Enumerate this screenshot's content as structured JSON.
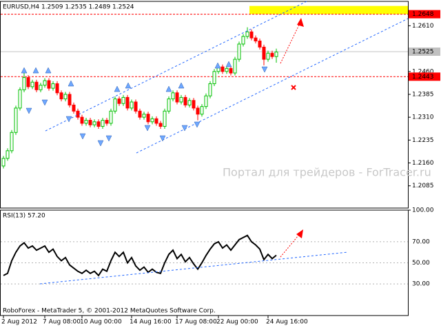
{
  "chart_data": [
    {
      "type": "candlestick",
      "title": "EURUSD,H4  1.2509 1.2535 1.2489 1.2524",
      "watermark": "Портал для трейдеров - ForTracer.ru",
      "up_color": "#00c000",
      "down_color": "#ff0000",
      "open": [
        1.215,
        1.2175,
        1.22,
        1.226,
        1.234,
        1.24,
        1.244,
        1.241,
        1.2425,
        1.24,
        1.2415,
        1.243,
        1.2405,
        1.242,
        1.239,
        1.237,
        1.2385,
        1.235,
        1.233,
        1.231,
        1.229,
        1.23,
        1.2285,
        1.2295,
        1.228,
        1.23,
        1.229,
        1.233,
        1.237,
        1.2355,
        1.2375,
        1.234,
        1.236,
        1.233,
        1.231,
        1.232,
        1.2295,
        1.2305,
        1.229,
        1.228,
        1.233,
        1.237,
        1.239,
        1.236,
        1.2375,
        1.235,
        1.2365,
        1.234,
        1.232,
        1.2345,
        1.238,
        1.242,
        1.246,
        1.2475,
        1.246,
        1.247,
        1.2455,
        1.25,
        1.255,
        1.2575,
        1.259,
        1.257,
        1.256,
        1.254,
        1.25,
        1.252,
        1.2509
      ],
      "high": [
        1.2183,
        1.2208,
        1.2268,
        1.2348,
        1.2408,
        1.2455,
        1.2448,
        1.2433,
        1.2433,
        1.2423,
        1.2438,
        1.2438,
        1.2428,
        1.2428,
        1.2398,
        1.2393,
        1.2393,
        1.2358,
        1.2338,
        1.2318,
        1.2308,
        1.2308,
        1.2303,
        1.2303,
        1.2308,
        1.2308,
        1.2338,
        1.2378,
        1.2378,
        1.2383,
        1.2383,
        1.2368,
        1.2368,
        1.2338,
        1.2328,
        1.2328,
        1.2313,
        1.2313,
        1.2298,
        1.2338,
        1.2378,
        1.2398,
        1.2398,
        1.2383,
        1.2383,
        1.2373,
        1.2373,
        1.2348,
        1.2353,
        1.2388,
        1.2428,
        1.2468,
        1.2483,
        1.2483,
        1.2478,
        1.2478,
        1.2508,
        1.2558,
        1.2583,
        1.2605,
        1.2598,
        1.2578,
        1.2568,
        1.2548,
        1.2528,
        1.2528,
        1.2535
      ],
      "low": [
        1.2142,
        1.2167,
        1.2192,
        1.2252,
        1.2332,
        1.2392,
        1.2402,
        1.2402,
        1.2392,
        1.2392,
        1.2407,
        1.2397,
        1.2397,
        1.2382,
        1.2362,
        1.2362,
        1.2342,
        1.2322,
        1.2302,
        1.2282,
        1.2282,
        1.2277,
        1.2277,
        1.2272,
        1.2272,
        1.2282,
        1.2282,
        1.2322,
        1.2347,
        1.2347,
        1.2332,
        1.2332,
        1.2322,
        1.2302,
        1.2302,
        1.2287,
        1.2287,
        1.2282,
        1.2272,
        1.2272,
        1.2322,
        1.2362,
        1.2352,
        1.2352,
        1.2342,
        1.2342,
        1.2332,
        1.23,
        1.2312,
        1.2337,
        1.2372,
        1.2412,
        1.2452,
        1.2452,
        1.2452,
        1.2447,
        1.2447,
        1.2492,
        1.2542,
        1.2567,
        1.2562,
        1.2552,
        1.2532,
        1.248,
        1.2492,
        1.2501,
        1.2489
      ],
      "close": [
        1.2175,
        1.22,
        1.226,
        1.234,
        1.24,
        1.244,
        1.241,
        1.2425,
        1.24,
        1.2415,
        1.243,
        1.2405,
        1.242,
        1.239,
        1.237,
        1.2385,
        1.235,
        1.233,
        1.231,
        1.229,
        1.23,
        1.2285,
        1.2295,
        1.228,
        1.23,
        1.229,
        1.233,
        1.237,
        1.2355,
        1.2375,
        1.234,
        1.236,
        1.233,
        1.231,
        1.232,
        1.2295,
        1.2305,
        1.229,
        1.228,
        1.233,
        1.237,
        1.239,
        1.236,
        1.2375,
        1.235,
        1.2365,
        1.234,
        1.232,
        1.2345,
        1.238,
        1.242,
        1.246,
        1.2475,
        1.246,
        1.247,
        1.2455,
        1.25,
        1.255,
        1.2575,
        1.259,
        1.257,
        1.256,
        1.254,
        1.25,
        1.252,
        1.2509,
        1.2524
      ],
      "ylim": [
        1.2012,
        1.269
      ],
      "yticks": [
        {
          "value": 1.261,
          "label": "1.2610"
        },
        {
          "value": 1.246,
          "label": "1.2460"
        },
        {
          "value": 1.2385,
          "label": "1.2385"
        },
        {
          "value": 1.231,
          "label": "1.2310"
        },
        {
          "value": 1.2235,
          "label": "1.2235"
        },
        {
          "value": 1.216,
          "label": "1.2160"
        },
        {
          "value": 1.2085,
          "label": "1.2085"
        }
      ],
      "levels": [
        {
          "value": 1.2648,
          "label": "1.2648"
        },
        {
          "value": 1.2443,
          "label": "1.2443"
        }
      ],
      "level_color": "#ff0000",
      "current_price": {
        "value": 1.2525,
        "label": "1.2525"
      },
      "zone": [
        1.2648,
        1.2675
      ],
      "zone_color": "#ffff00"
    },
    {
      "type": "line",
      "title": "RSI(13) 57.20",
      "color": "#000000",
      "values": [
        38,
        40,
        52,
        60,
        66,
        69,
        64,
        66,
        62,
        64,
        66,
        60,
        63,
        56,
        52,
        55,
        48,
        45,
        42,
        40,
        43,
        40,
        42,
        38,
        44,
        42,
        52,
        60,
        56,
        60,
        50,
        55,
        47,
        43,
        46,
        41,
        44,
        41,
        40,
        50,
        58,
        62,
        54,
        58,
        51,
        55,
        49,
        44,
        50,
        57,
        63,
        68,
        70,
        64,
        67,
        62,
        67,
        72,
        74,
        76,
        70,
        67,
        63,
        53,
        58,
        54,
        57.2
      ],
      "categories": [
        "2 Aug 2012",
        null,
        null,
        null,
        null,
        null,
        null,
        null,
        null,
        null,
        "7 Aug 08:00",
        null,
        null,
        null,
        null,
        null,
        null,
        null,
        null,
        "10 Aug 00:00",
        null,
        null,
        null,
        null,
        null,
        null,
        null,
        null,
        null,
        null,
        null,
        "14 Aug 16:00",
        null,
        null,
        null,
        null,
        null,
        null,
        null,
        null,
        null,
        null,
        "17 Aug 08:00",
        null,
        null,
        null,
        null,
        null,
        null,
        null,
        null,
        null,
        "22 Aug 00:00",
        null,
        null,
        null,
        null,
        null,
        null,
        null,
        null,
        null,
        null,
        null,
        "24 Aug 16:00",
        null,
        null
      ],
      "ylim": [
        0,
        100
      ],
      "yticks": [
        {
          "value": 100,
          "label": "100.00"
        },
        {
          "value": 70,
          "label": "70.00"
        },
        {
          "value": 50,
          "label": "50.00"
        },
        {
          "value": 30,
          "label": "30.00"
        }
      ],
      "annotation": "RoboForex - MetaTrader 5, © 2001-2012 MetaQuotes Software Corp."
    }
  ]
}
